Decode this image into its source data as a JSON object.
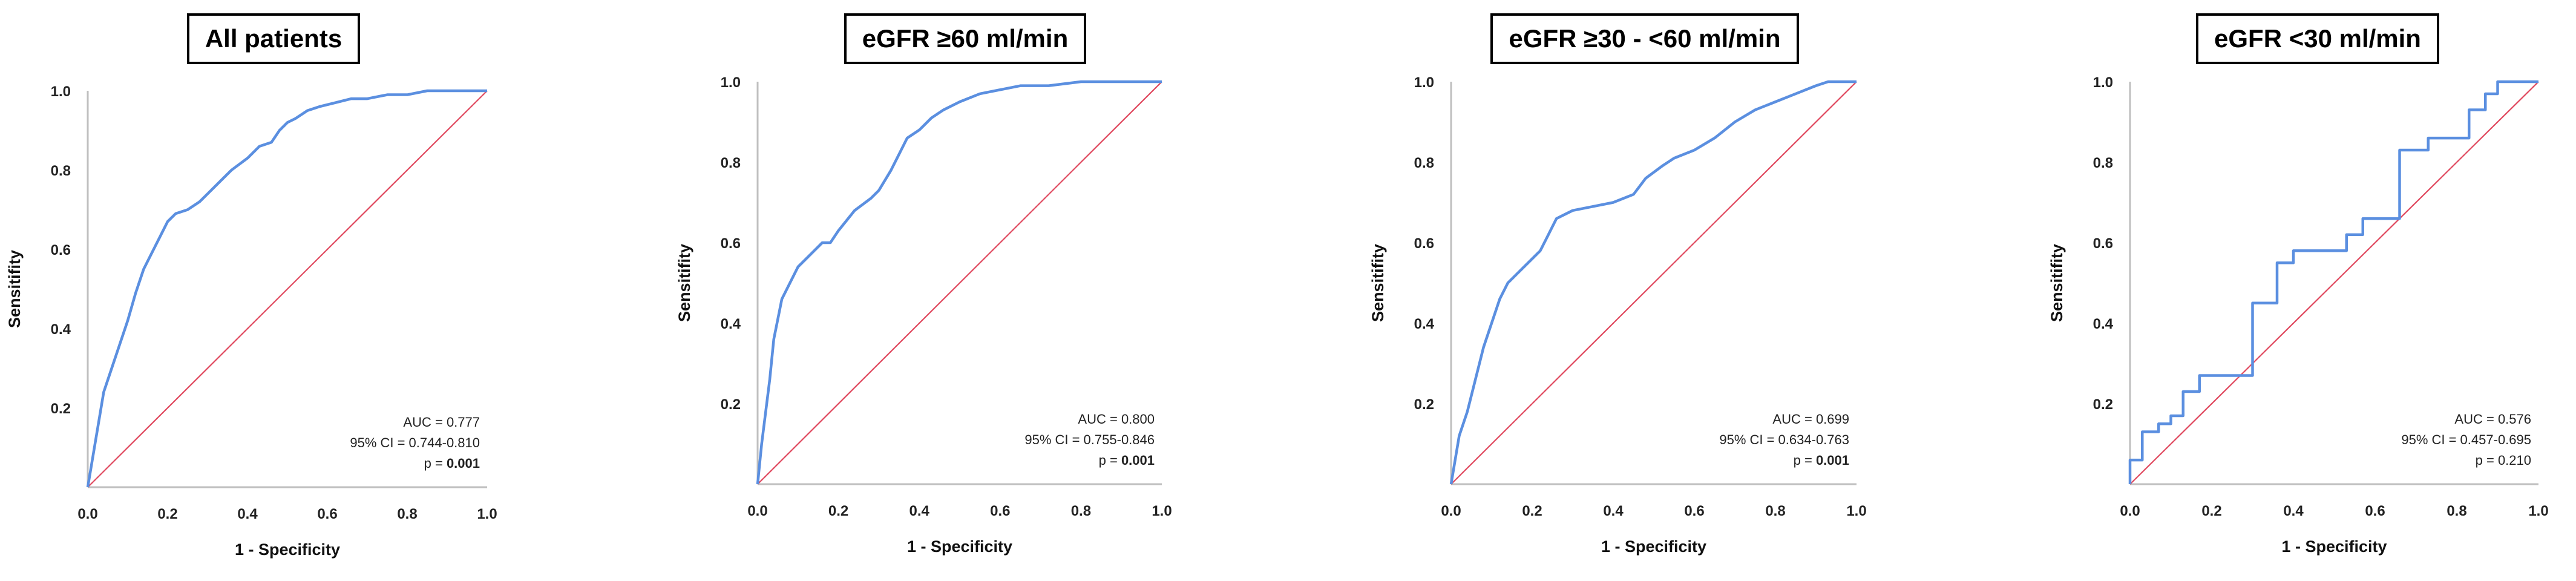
{
  "colors": {
    "roc": "#5B8FE0",
    "diagonal": "#E0485E",
    "axis": "#BFBFBF"
  },
  "chart_data": [
    {
      "type": "line",
      "title": "All patients",
      "xlabel": "1 - Specificity",
      "ylabel": "Sensitifity",
      "xlim": [
        0,
        1
      ],
      "ylim": [
        0,
        1
      ],
      "x_ticks": [
        "0.0",
        "0.2",
        "0.4",
        "0.6",
        "0.8",
        "1.0"
      ],
      "y_ticks": [
        "0.2",
        "0.4",
        "0.6",
        "0.8",
        "1.0"
      ],
      "grid": false,
      "series": [
        {
          "x": [
            0,
            0.01,
            0.02,
            0.03,
            0.04,
            0.06,
            0.08,
            0.1,
            0.12,
            0.14,
            0.16,
            0.18,
            0.2,
            0.22,
            0.25,
            0.28,
            0.3,
            0.33,
            0.36,
            0.4,
            0.43,
            0.46,
            0.48,
            0.5,
            0.52,
            0.55,
            0.58,
            0.62,
            0.66,
            0.7,
            0.75,
            0.8,
            0.85,
            0.9,
            0.95,
            1.0
          ],
          "y": [
            0,
            0.06,
            0.12,
            0.18,
            0.24,
            0.3,
            0.36,
            0.42,
            0.49,
            0.55,
            0.59,
            0.63,
            0.67,
            0.69,
            0.7,
            0.72,
            0.74,
            0.77,
            0.8,
            0.83,
            0.86,
            0.87,
            0.9,
            0.92,
            0.93,
            0.95,
            0.96,
            0.97,
            0.98,
            0.98,
            0.99,
            0.99,
            1.0,
            1.0,
            1.0,
            1.0
          ]
        },
        {
          "x": [
            0,
            1
          ],
          "y": [
            0,
            1
          ]
        }
      ],
      "annotations": {
        "auc": "AUC = 0.777",
        "ci": "95% CI = 0.744-0.810",
        "p_prefix": "p = ",
        "p_value": "0.001",
        "p_bold": true
      }
    },
    {
      "type": "line",
      "title": "eGFR ≥60 ml/min",
      "xlabel": "1 - Specificity",
      "ylabel": "Sensitifity",
      "xlim": [
        0,
        1
      ],
      "ylim": [
        0,
        1
      ],
      "x_ticks": [
        "0.0",
        "0.2",
        "0.4",
        "0.6",
        "0.8",
        "1.0"
      ],
      "y_ticks": [
        "0.2",
        "0.4",
        "0.6",
        "0.8",
        "1.0"
      ],
      "grid": false,
      "series": [
        {
          "x": [
            0,
            0.01,
            0.02,
            0.03,
            0.04,
            0.06,
            0.08,
            0.1,
            0.12,
            0.14,
            0.16,
            0.18,
            0.2,
            0.24,
            0.28,
            0.3,
            0.33,
            0.35,
            0.37,
            0.4,
            0.43,
            0.46,
            0.5,
            0.55,
            0.6,
            0.65,
            0.72,
            0.8,
            0.9,
            1.0
          ],
          "y": [
            0,
            0.1,
            0.18,
            0.26,
            0.36,
            0.46,
            0.5,
            0.54,
            0.56,
            0.58,
            0.6,
            0.6,
            0.63,
            0.68,
            0.71,
            0.73,
            0.78,
            0.82,
            0.86,
            0.88,
            0.91,
            0.93,
            0.95,
            0.97,
            0.98,
            0.99,
            0.99,
            1.0,
            1.0,
            1.0
          ]
        },
        {
          "x": [
            0,
            1
          ],
          "y": [
            0,
            1
          ]
        }
      ],
      "annotations": {
        "auc": "AUC = 0.800",
        "ci": "95% CI = 0.755-0.846",
        "p_prefix": "p = ",
        "p_value": "0.001",
        "p_bold": true
      }
    },
    {
      "type": "line",
      "title": "eGFR ≥30 - <60 ml/min",
      "xlabel": "1 - Specificity",
      "ylabel": "Sensitifity",
      "xlim": [
        0,
        1
      ],
      "ylim": [
        0,
        1
      ],
      "x_ticks": [
        "0.0",
        "0.2",
        "0.4",
        "0.6",
        "0.8",
        "1.0"
      ],
      "y_ticks": [
        "0.2",
        "0.4",
        "0.6",
        "0.8",
        "1.0"
      ],
      "grid": false,
      "series": [
        {
          "x": [
            0,
            0.01,
            0.02,
            0.04,
            0.06,
            0.08,
            0.1,
            0.12,
            0.14,
            0.16,
            0.18,
            0.2,
            0.22,
            0.24,
            0.26,
            0.28,
            0.3,
            0.35,
            0.4,
            0.45,
            0.48,
            0.52,
            0.55,
            0.6,
            0.65,
            0.7,
            0.75,
            0.8,
            0.85,
            0.9,
            0.93,
            1.0
          ],
          "y": [
            0,
            0.06,
            0.12,
            0.18,
            0.26,
            0.34,
            0.4,
            0.46,
            0.5,
            0.52,
            0.54,
            0.56,
            0.58,
            0.62,
            0.66,
            0.67,
            0.68,
            0.69,
            0.7,
            0.72,
            0.76,
            0.79,
            0.81,
            0.83,
            0.86,
            0.9,
            0.93,
            0.95,
            0.97,
            0.99,
            1.0,
            1.0
          ]
        },
        {
          "x": [
            0,
            1
          ],
          "y": [
            0,
            1
          ]
        }
      ],
      "annotations": {
        "auc": "AUC = 0.699",
        "ci": "95% CI = 0.634-0.763",
        "p_prefix": "p = ",
        "p_value": "0.001",
        "p_bold": true
      }
    },
    {
      "type": "line",
      "title": "eGFR <30 ml/min",
      "xlabel": "1 - Specificity",
      "ylabel": "Sensitifity",
      "xlim": [
        0,
        1
      ],
      "ylim": [
        0,
        1
      ],
      "x_ticks": [
        "0.0",
        "0.2",
        "0.4",
        "0.6",
        "0.8",
        "1.0"
      ],
      "y_ticks": [
        "0.2",
        "0.4",
        "0.6",
        "0.8",
        "1.0"
      ],
      "grid": false,
      "series": [
        {
          "x": [
            0,
            0,
            0.03,
            0.03,
            0.07,
            0.07,
            0.1,
            0.1,
            0.13,
            0.13,
            0.17,
            0.17,
            0.3,
            0.3,
            0.36,
            0.36,
            0.4,
            0.4,
            0.53,
            0.53,
            0.57,
            0.57,
            0.66,
            0.66,
            0.73,
            0.73,
            0.83,
            0.83,
            0.87,
            0.87,
            0.9,
            0.9,
            1.0
          ],
          "y": [
            0,
            0.06,
            0.06,
            0.13,
            0.13,
            0.15,
            0.15,
            0.17,
            0.17,
            0.23,
            0.23,
            0.27,
            0.27,
            0.45,
            0.45,
            0.55,
            0.55,
            0.58,
            0.58,
            0.62,
            0.62,
            0.66,
            0.66,
            0.83,
            0.83,
            0.86,
            0.86,
            0.93,
            0.93,
            0.97,
            0.97,
            1.0,
            1.0
          ]
        },
        {
          "x": [
            0,
            1
          ],
          "y": [
            0,
            1
          ]
        }
      ],
      "annotations": {
        "auc": "AUC = 0.576",
        "ci": "95% CI = 0.457-0.695",
        "p_prefix": "p = ",
        "p_value": "0.210",
        "p_bold": false
      }
    }
  ]
}
